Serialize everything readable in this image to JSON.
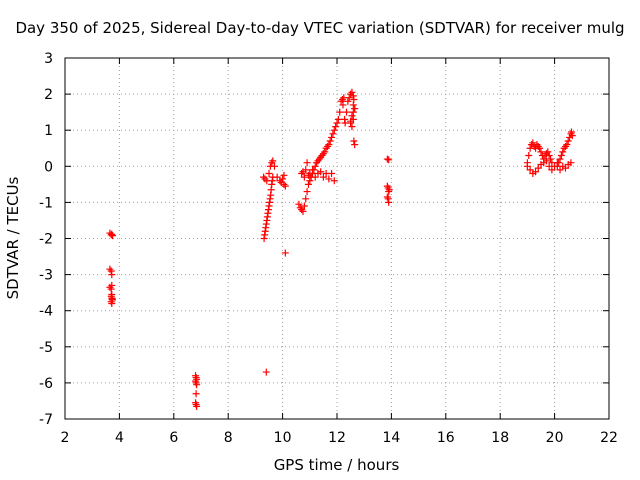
{
  "chart_data": {
    "type": "scatter",
    "title": "Day 350 of 2025, Sidereal Day-to-day VTEC variation (SDTVAR) for receiver mulg",
    "xlabel": "GPS time / hours",
    "ylabel": "SDTVAR / TECUs",
    "xlim": [
      2,
      22
    ],
    "ylim": [
      -7,
      3
    ],
    "x_ticks": [
      "2",
      "4",
      "6",
      "8",
      "10",
      "12",
      "14",
      "16",
      "18",
      "20",
      "22"
    ],
    "y_ticks": [
      "3",
      "2",
      "1",
      "0",
      "-1",
      "-2",
      "-3",
      "-4",
      "-5",
      "-6",
      "-7"
    ],
    "grid": true,
    "marker": "+",
    "color": "#ff0000",
    "series": [
      {
        "x": [
          3.65,
          3.7,
          3.72,
          3.75,
          3.65,
          3.7,
          3.72,
          3.65,
          3.7,
          3.72,
          3.7,
          3.72,
          3.74,
          3.7,
          3.72,
          3.74,
          3.72,
          6.8,
          6.82,
          6.84,
          6.8,
          6.82,
          6.84,
          6.82,
          6.8,
          6.82,
          6.84,
          9.32,
          9.34,
          9.36,
          9.38,
          9.4,
          9.42,
          9.44,
          9.46,
          9.48,
          9.5,
          9.52,
          9.54,
          9.56,
          9.58,
          9.6,
          9.62,
          9.64,
          9.3,
          9.35,
          9.42,
          9.5,
          9.55,
          9.6,
          9.64,
          9.7,
          9.8,
          9.9,
          9.95,
          10.0,
          10.05,
          10.1,
          10.1,
          9.4,
          10.05,
          10.6,
          10.65,
          10.7,
          10.75,
          10.8,
          10.85,
          10.9,
          10.95,
          11.0,
          11.05,
          11.1,
          11.15,
          11.2,
          11.25,
          11.3,
          11.35,
          11.4,
          11.45,
          11.5,
          11.55,
          11.6,
          11.65,
          11.7,
          11.75,
          11.8,
          11.85,
          11.9,
          11.95,
          12.0,
          12.05,
          12.1,
          12.15,
          10.7,
          10.75,
          10.8,
          10.85,
          10.9,
          10.95,
          11.0,
          11.1,
          11.2,
          11.3,
          11.4,
          11.5,
          11.6,
          11.7,
          11.8,
          11.9,
          12.2,
          12.22,
          12.25,
          12.28,
          12.3,
          12.35,
          12.4,
          12.45,
          12.5,
          12.55,
          12.6,
          12.62,
          12.65,
          12.5,
          12.55,
          12.6,
          12.62,
          12.65,
          12.5,
          12.55,
          12.6,
          12.65,
          12.6,
          13.85,
          13.9,
          13.85,
          13.88,
          13.9,
          13.92,
          13.85,
          13.88,
          13.9,
          19.0,
          19.05,
          19.1,
          19.15,
          19.2,
          19.25,
          19.3,
          19.35,
          19.4,
          19.45,
          19.5,
          19.55,
          19.6,
          19.65,
          19.7,
          19.75,
          19.8,
          19.85,
          19.9,
          19.0,
          19.1,
          19.2,
          19.3,
          19.4,
          19.5,
          19.6,
          19.7,
          19.8,
          19.9,
          20.0,
          20.1,
          20.1,
          20.15,
          20.2,
          20.25,
          20.3,
          20.35,
          20.4,
          20.45,
          20.5,
          20.55,
          20.6,
          20.62,
          20.65,
          20.2,
          20.3,
          20.4,
          20.5,
          20.6
        ],
        "y": [
          -1.85,
          -1.9,
          -1.88,
          -1.92,
          -2.85,
          -2.9,
          -3.0,
          -3.35,
          -3.4,
          -3.3,
          -3.6,
          -3.65,
          -3.7,
          -3.75,
          -3.8,
          -3.68,
          -3.55,
          -5.8,
          -5.85,
          -5.9,
          -5.95,
          -6.0,
          -6.05,
          -6.3,
          -6.55,
          -6.6,
          -6.65,
          -2.0,
          -1.9,
          -1.8,
          -1.7,
          -1.6,
          -1.5,
          -1.4,
          -1.3,
          -1.2,
          -1.1,
          -1.0,
          -0.9,
          -0.8,
          -0.65,
          -0.5,
          -0.4,
          -0.3,
          -0.3,
          -0.35,
          -0.4,
          -0.2,
          0.0,
          0.1,
          0.15,
          0.0,
          -0.3,
          -0.4,
          -0.45,
          -0.35,
          -0.25,
          -0.55,
          -2.4,
          -5.7,
          -0.5,
          -1.05,
          -1.15,
          -1.2,
          -1.25,
          -1.1,
          -0.9,
          -0.7,
          -0.5,
          -0.4,
          -0.3,
          -0.2,
          -0.1,
          0.0,
          0.1,
          0.15,
          0.2,
          0.25,
          0.3,
          0.35,
          0.4,
          0.5,
          0.55,
          0.6,
          0.7,
          0.8,
          0.9,
          1.0,
          1.1,
          1.2,
          1.3,
          1.5,
          1.8,
          -0.2,
          -0.15,
          -0.3,
          -0.1,
          0.1,
          -0.25,
          -0.2,
          -0.1,
          -0.3,
          -0.2,
          -0.15,
          -0.3,
          -0.2,
          -0.35,
          -0.2,
          -0.4,
          1.85,
          1.7,
          1.9,
          1.3,
          1.2,
          1.5,
          1.8,
          1.9,
          2.0,
          2.05,
          1.95,
          1.85,
          1.6,
          1.2,
          1.1,
          1.3,
          0.7,
          0.6,
          1.25,
          1.4,
          1.5,
          1.6,
          1.7,
          0.2,
          0.18,
          -0.55,
          -0.6,
          -0.7,
          -0.65,
          -0.85,
          -0.9,
          -1.0,
          0.1,
          0.3,
          0.5,
          0.6,
          0.65,
          0.55,
          0.5,
          0.6,
          0.55,
          0.5,
          0.4,
          0.3,
          0.2,
          0.3,
          0.35,
          0.4,
          0.3,
          0.2,
          0.1,
          0.0,
          -0.1,
          -0.2,
          -0.15,
          -0.05,
          0.05,
          0.1,
          0.15,
          0.0,
          -0.1,
          0.0,
          0.1,
          0.0,
          0.1,
          0.2,
          0.3,
          0.4,
          0.5,
          0.55,
          0.6,
          0.7,
          0.8,
          0.9,
          0.95,
          0.85,
          -0.1,
          0.0,
          -0.05,
          0.05,
          0.1
        ]
      }
    ]
  }
}
